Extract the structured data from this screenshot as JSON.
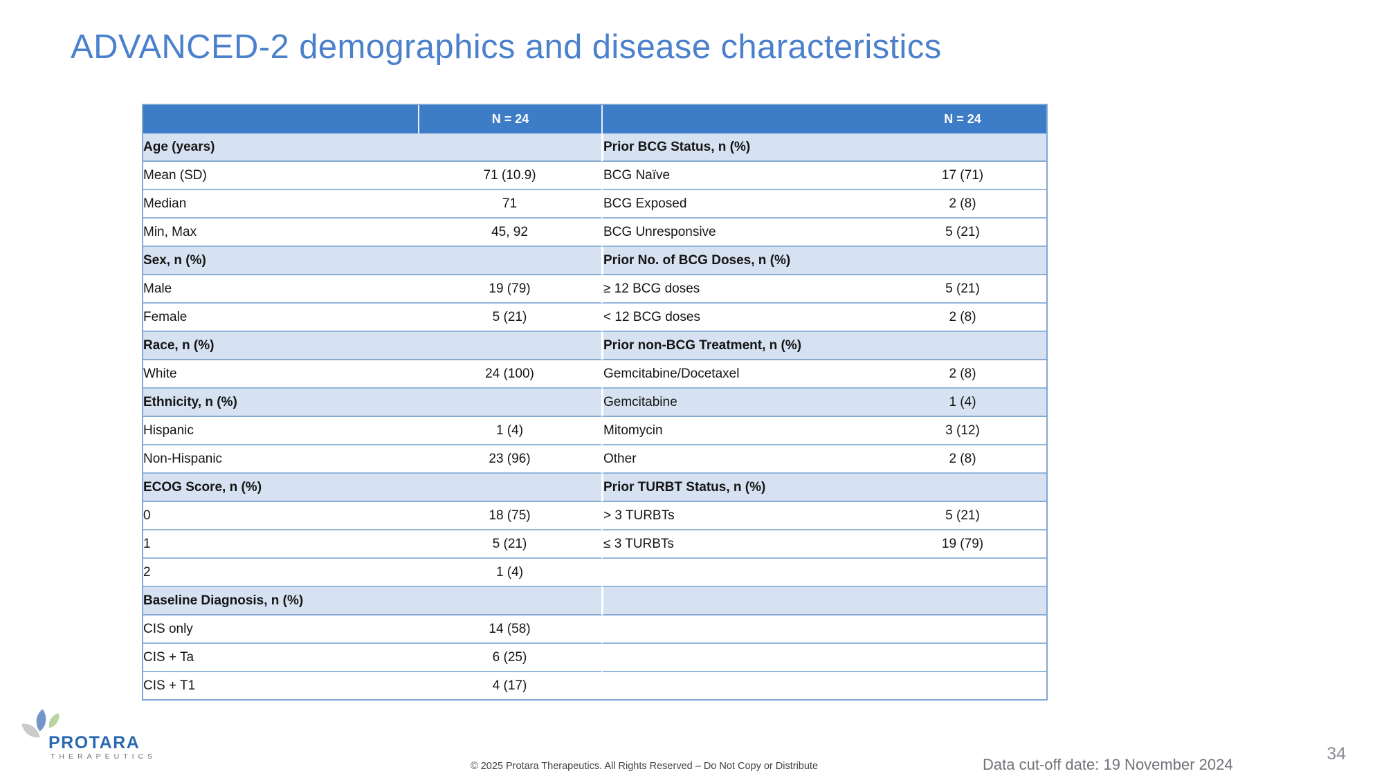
{
  "slide_title": "ADVANCED-2 demographics and disease characteristics",
  "table": {
    "header": {
      "left_n": "N = 24",
      "right_n": "N = 24"
    },
    "rows": [
      {
        "shaded": true,
        "cells": [
          {
            "text": "Age (years)",
            "bold": true,
            "indent": 0
          },
          {
            "text": ""
          },
          {
            "text": "Prior BCG Status, n (%)",
            "bold": true,
            "indent": 0
          },
          {
            "text": ""
          }
        ]
      },
      {
        "shaded": false,
        "cells": [
          {
            "text": "Mean (SD)",
            "indent": 1
          },
          {
            "text": "71 (10.9)"
          },
          {
            "text": "BCG Naïve",
            "indent": 1
          },
          {
            "text": "17 (71)"
          }
        ]
      },
      {
        "shaded": false,
        "cells": [
          {
            "text": "Median",
            "indent": 1
          },
          {
            "text": "71"
          },
          {
            "text": "BCG Exposed",
            "indent": 1
          },
          {
            "text": "2 (8)"
          }
        ]
      },
      {
        "shaded": false,
        "cells": [
          {
            "text": "Min, Max",
            "indent": 1
          },
          {
            "text": "45, 92"
          },
          {
            "text": "BCG Unresponsive",
            "indent": 1
          },
          {
            "text": "5 (21)"
          }
        ]
      },
      {
        "shaded": true,
        "cells": [
          {
            "text": "Sex, n (%)",
            "bold": true,
            "indent": 0
          },
          {
            "text": ""
          },
          {
            "text": "Prior No. of BCG Doses, n (%)",
            "bold": true,
            "indent": 0
          },
          {
            "text": ""
          }
        ]
      },
      {
        "shaded": false,
        "cells": [
          {
            "text": "Male",
            "indent": 1
          },
          {
            "text": "19 (79)"
          },
          {
            "text": "≥ 12 BCG doses",
            "indent": 1
          },
          {
            "text": "5 (21)"
          }
        ]
      },
      {
        "shaded": false,
        "cells": [
          {
            "text": "Female",
            "indent": 1
          },
          {
            "text": "5 (21)"
          },
          {
            "text": "< 12 BCG doses",
            "indent": 1
          },
          {
            "text": "2 (8)"
          }
        ]
      },
      {
        "shaded": true,
        "cells": [
          {
            "text": "Race, n (%)",
            "bold": true,
            "indent": 0
          },
          {
            "text": ""
          },
          {
            "text": "Prior non-BCG Treatment, n (%)",
            "bold": true,
            "indent": 0
          },
          {
            "text": ""
          }
        ]
      },
      {
        "shaded": false,
        "cells": [
          {
            "text": "White",
            "indent": 1
          },
          {
            "text": "24 (100)"
          },
          {
            "text": "Gemcitabine/Docetaxel",
            "indent": 2
          },
          {
            "text": "2 (8)"
          }
        ]
      },
      {
        "shaded": true,
        "cells": [
          {
            "text": "Ethnicity, n (%)",
            "bold": true,
            "indent": 0
          },
          {
            "text": ""
          },
          {
            "text": "Gemcitabine",
            "indent": 2
          },
          {
            "text": "1 (4)"
          }
        ]
      },
      {
        "shaded": false,
        "cells": [
          {
            "text": "Hispanic",
            "indent": 1
          },
          {
            "text": "1 (4)"
          },
          {
            "text": "Mitomycin",
            "indent": 2
          },
          {
            "text": "3 (12)"
          }
        ]
      },
      {
        "shaded": false,
        "cells": [
          {
            "text": "Non-Hispanic",
            "indent": 1
          },
          {
            "text": "23 (96)"
          },
          {
            "text": "Other",
            "indent": 2
          },
          {
            "text": "2 (8)"
          }
        ]
      },
      {
        "shaded": true,
        "cells": [
          {
            "text": "ECOG Score, n (%)",
            "bold": true,
            "indent": 0
          },
          {
            "text": ""
          },
          {
            "text": "Prior TURBT Status, n (%)",
            "bold": true,
            "indent": 0
          },
          {
            "text": ""
          }
        ]
      },
      {
        "shaded": false,
        "cells": [
          {
            "text": "0",
            "indent": 1
          },
          {
            "text": "18 (75)"
          },
          {
            "text": "> 3 TURBTs",
            "indent": 1
          },
          {
            "text": "5 (21)"
          }
        ]
      },
      {
        "shaded": false,
        "cells": [
          {
            "text": "1",
            "indent": 1
          },
          {
            "text": "5 (21)"
          },
          {
            "text": "≤ 3 TURBTs",
            "indent": 1
          },
          {
            "text": "19 (79)"
          }
        ]
      },
      {
        "shaded": false,
        "cells": [
          {
            "text": "2",
            "indent": 1
          },
          {
            "text": "1 (4)"
          },
          {
            "text": ""
          },
          {
            "text": ""
          }
        ]
      },
      {
        "shaded": true,
        "cells": [
          {
            "text": "Baseline Diagnosis, n (%)",
            "bold": true,
            "indent": 0
          },
          {
            "text": ""
          },
          {
            "text": ""
          },
          {
            "text": ""
          }
        ]
      },
      {
        "shaded": false,
        "cells": [
          {
            "text": "CIS only",
            "indent": 1
          },
          {
            "text": "14 (58)"
          },
          {
            "text": ""
          },
          {
            "text": ""
          }
        ]
      },
      {
        "shaded": false,
        "cells": [
          {
            "text": "CIS + Ta",
            "indent": 1
          },
          {
            "text": "6 (25)"
          },
          {
            "text": ""
          },
          {
            "text": ""
          }
        ]
      },
      {
        "shaded": false,
        "cells": [
          {
            "text": "CIS + T1",
            "indent": 1
          },
          {
            "text": "4 (17)"
          },
          {
            "text": ""
          },
          {
            "text": ""
          }
        ]
      }
    ]
  },
  "logo": {
    "brand": "PROTARA",
    "subtext": "THERAPEUTICS"
  },
  "footer": {
    "copyright": "© 2025 Protara Therapeutics. All Rights Reserved – Do Not Copy or Distribute",
    "data_cutoff": "Data cut-off date: 19 November 2024",
    "page_number": "34"
  },
  "colors": {
    "title_blue": "#4B80CC",
    "table_header_blue": "#3D7CC6",
    "row_shade_blue": "#D6E2F1",
    "row_border_blue": "#93B6DC",
    "logo_brand_blue": "#2A69B0",
    "petal_gray": "#C9CDCA",
    "petal_blue": "#7295CB",
    "petal_green": "#B9D49E"
  }
}
